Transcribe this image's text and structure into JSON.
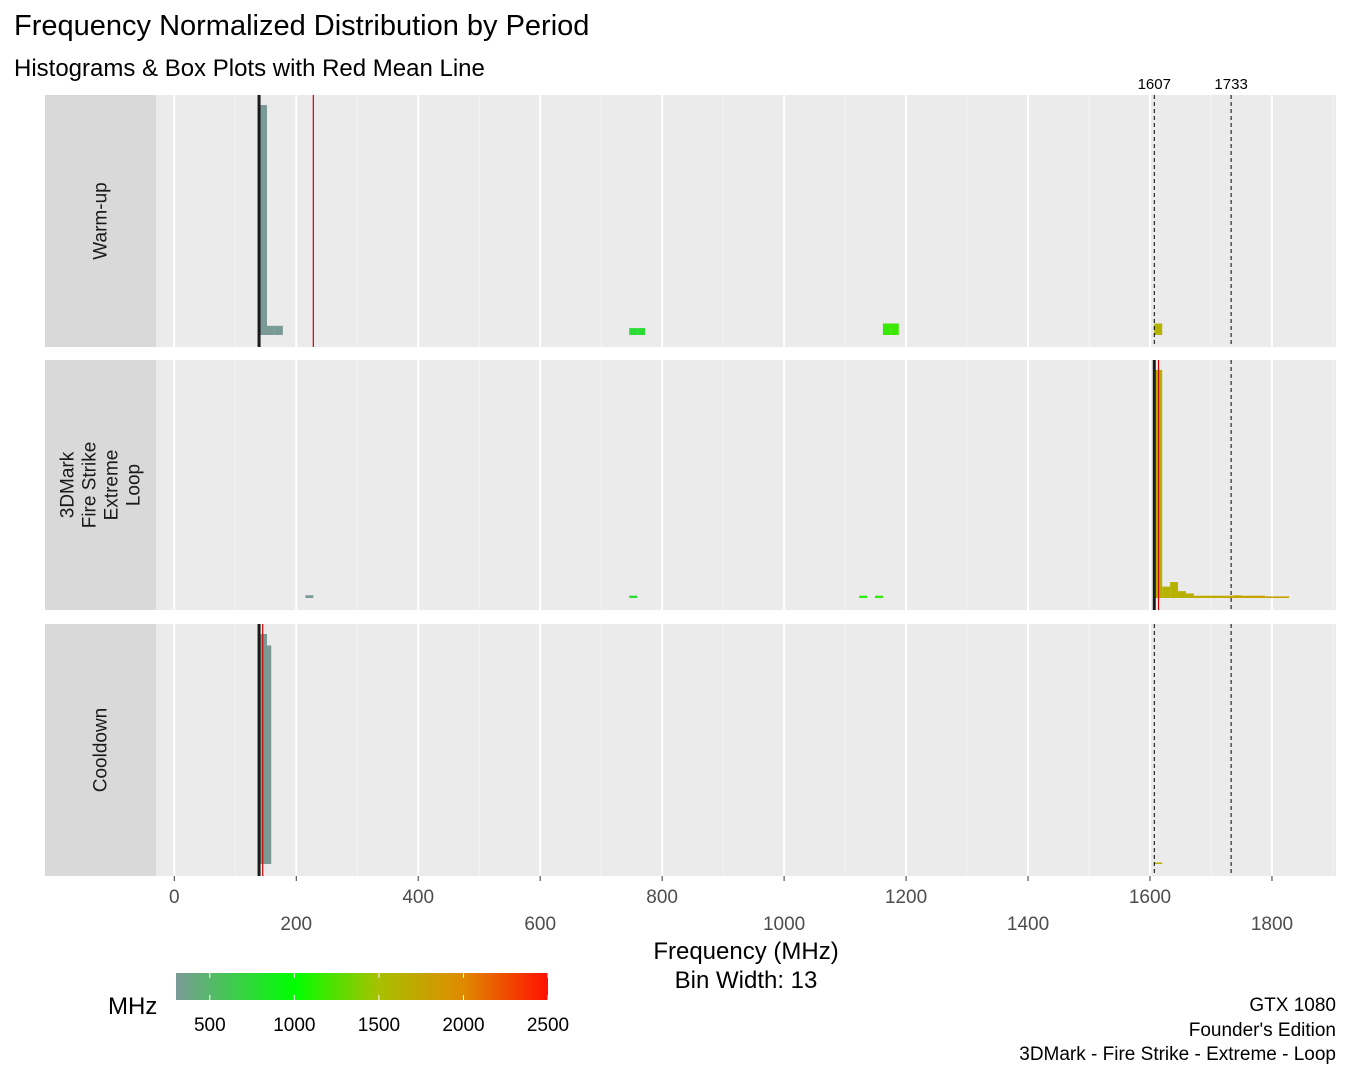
{
  "title": "Frequency Normalized Distribution by Period",
  "subtitle": "Histograms & Box Plots with Red Mean Line",
  "caption": [
    "GTX 1080",
    "Founder's Edition",
    "3DMark - Fire Strike - Extreme - Loop"
  ],
  "chart_data": {
    "type": "histogram",
    "xlabel": "Frequency (MHz)",
    "xlabel2": "Bin Width: 13",
    "xlim": [
      -30,
      1905
    ],
    "x_ticks_upper": [
      0,
      400,
      800,
      1200,
      1600
    ],
    "x_ticks_lower": [
      200,
      600,
      1000,
      1400,
      1800
    ],
    "reference_lines": [
      {
        "value": 1607,
        "label": "1607"
      },
      {
        "value": 1733,
        "label": "1733"
      }
    ],
    "legend": {
      "title": "MHz",
      "ticks": [
        500,
        1000,
        1500,
        2000,
        2500
      ],
      "range": [
        300,
        2500
      ],
      "stops": [
        {
          "value": 300,
          "color": "#7a9a96"
        },
        {
          "value": 1000,
          "color": "#00ff00"
        },
        {
          "value": 1500,
          "color": "#a8c000"
        },
        {
          "value": 2000,
          "color": "#e08a00"
        },
        {
          "value": 2500,
          "color": "#ff1000"
        }
      ]
    },
    "panels": [
      {
        "label": "Warm-up",
        "mean": 228,
        "median": 139,
        "bars": [
          {
            "x": 139,
            "h": 1.0
          },
          {
            "x": 152,
            "h": 0.04
          },
          {
            "x": 165,
            "h": 0.04
          },
          {
            "x": 746,
            "h": 0.03
          },
          {
            "x": 759,
            "h": 0.03
          },
          {
            "x": 1162,
            "h": 0.05
          },
          {
            "x": 1175,
            "h": 0.05
          },
          {
            "x": 1607,
            "h": 0.05
          }
        ]
      },
      {
        "label": "3DMark\nFire Strike\nExtreme\nLoop",
        "mean": 1614,
        "median": 1607,
        "bars": [
          {
            "x": 215,
            "h": 0.012
          },
          {
            "x": 746,
            "h": 0.01
          },
          {
            "x": 1123,
            "h": 0.01
          },
          {
            "x": 1149,
            "h": 0.01
          },
          {
            "x": 1607,
            "h": 1.0
          },
          {
            "x": 1620,
            "h": 0.05
          },
          {
            "x": 1633,
            "h": 0.07
          },
          {
            "x": 1646,
            "h": 0.03
          },
          {
            "x": 1659,
            "h": 0.02
          },
          {
            "x": 1672,
            "h": 0.01
          },
          {
            "x": 1685,
            "h": 0.01
          },
          {
            "x": 1698,
            "h": 0.01
          },
          {
            "x": 1711,
            "h": 0.01
          },
          {
            "x": 1724,
            "h": 0.01
          },
          {
            "x": 1737,
            "h": 0.012
          },
          {
            "x": 1750,
            "h": 0.01
          },
          {
            "x": 1763,
            "h": 0.01
          },
          {
            "x": 1776,
            "h": 0.01
          },
          {
            "x": 1789,
            "h": 0.007
          },
          {
            "x": 1802,
            "h": 0.007
          },
          {
            "x": 1815,
            "h": 0.007
          }
        ]
      },
      {
        "label": "Cooldown",
        "mean": 145,
        "median": 139,
        "bars": [
          {
            "x": 139,
            "h": 1.0
          },
          {
            "x": 146,
            "h": 0.95
          },
          {
            "x": 1607,
            "h": 0.004
          }
        ]
      }
    ]
  }
}
